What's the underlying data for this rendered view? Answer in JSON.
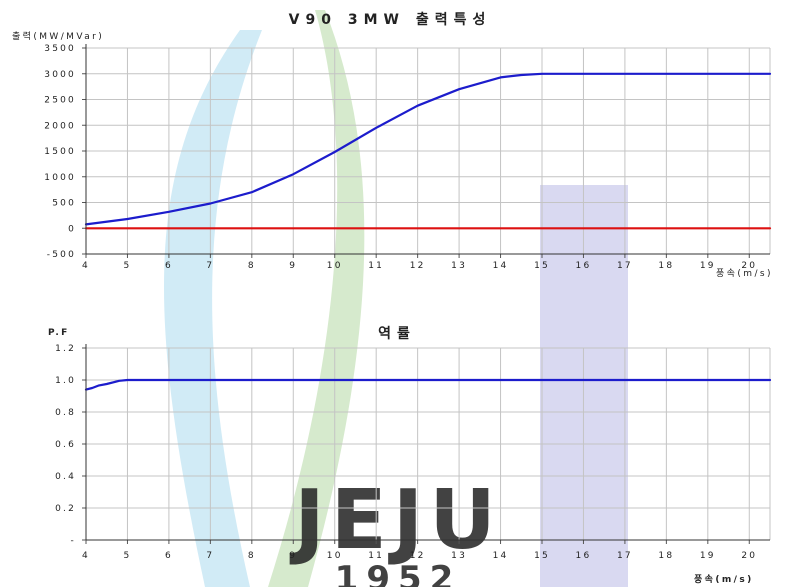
{
  "watermark": {
    "text": "JEJU",
    "year": "1952"
  },
  "chart_data": [
    {
      "type": "line",
      "title": "V90 3MW 출력특성",
      "ylabel": "출력(MW/MVar)",
      "xlabel": "풍속(m/s)",
      "xlim": [
        4,
        20.5
      ],
      "ylim": [
        -500,
        3500
      ],
      "x_ticks": [
        4,
        5,
        6,
        7,
        8,
        9,
        10,
        11,
        12,
        13,
        14,
        15,
        16,
        17,
        18,
        19,
        20
      ],
      "y_ticks": [
        -500,
        0,
        500,
        1000,
        1500,
        2000,
        2500,
        3000,
        3500
      ],
      "y_tick_labels": [
        "-500",
        "0",
        "500",
        "1000",
        "1500",
        "2000",
        "2500",
        "3000",
        "3500"
      ],
      "grid": true,
      "series": [
        {
          "color": "#1c1ccc",
          "points": [
            [
              4,
              75
            ],
            [
              5,
              180
            ],
            [
              6,
              320
            ],
            [
              7,
              480
            ],
            [
              8,
              700
            ],
            [
              9,
              1050
            ],
            [
              10,
              1480
            ],
            [
              11,
              1950
            ],
            [
              12,
              2380
            ],
            [
              13,
              2700
            ],
            [
              14,
              2930
            ],
            [
              14.5,
              2975
            ],
            [
              15,
              3000
            ],
            [
              16,
              3000
            ],
            [
              17,
              3000
            ],
            [
              18,
              3000
            ],
            [
              19,
              3000
            ],
            [
              20,
              3000
            ],
            [
              20.5,
              3000
            ]
          ]
        },
        {
          "color": "#dd1111",
          "points": [
            [
              4,
              0
            ],
            [
              20.5,
              0
            ]
          ]
        }
      ]
    },
    {
      "type": "line",
      "title": "역률",
      "ylabel": "P.F",
      "xlabel": "풍속(m/s)",
      "xlim": [
        4,
        20.5
      ],
      "ylim": [
        0,
        1.2
      ],
      "x_ticks": [
        4,
        5,
        6,
        7,
        8,
        9,
        10,
        11,
        12,
        13,
        14,
        15,
        16,
        17,
        18,
        19,
        20
      ],
      "y_ticks": [
        0,
        0.2,
        0.4,
        0.6,
        0.8,
        1.0,
        1.2
      ],
      "y_tick_labels": [
        "-",
        "0.2",
        "0.4",
        "0.6",
        "0.8",
        "1.0",
        "1.2"
      ],
      "grid": true,
      "series": [
        {
          "color": "#1c1ccc",
          "points": [
            [
              4,
              0.94
            ],
            [
              4.15,
              0.95
            ],
            [
              4.3,
              0.965
            ],
            [
              4.5,
              0.975
            ],
            [
              4.8,
              0.995
            ],
            [
              5,
              1.0
            ],
            [
              6,
              1.0
            ],
            [
              8,
              1.0
            ],
            [
              10,
              1.0
            ],
            [
              12,
              1.0
            ],
            [
              14,
              1.0
            ],
            [
              16,
              1.0
            ],
            [
              18,
              1.0
            ],
            [
              20,
              1.0
            ],
            [
              20.5,
              1.0
            ]
          ]
        }
      ]
    }
  ]
}
